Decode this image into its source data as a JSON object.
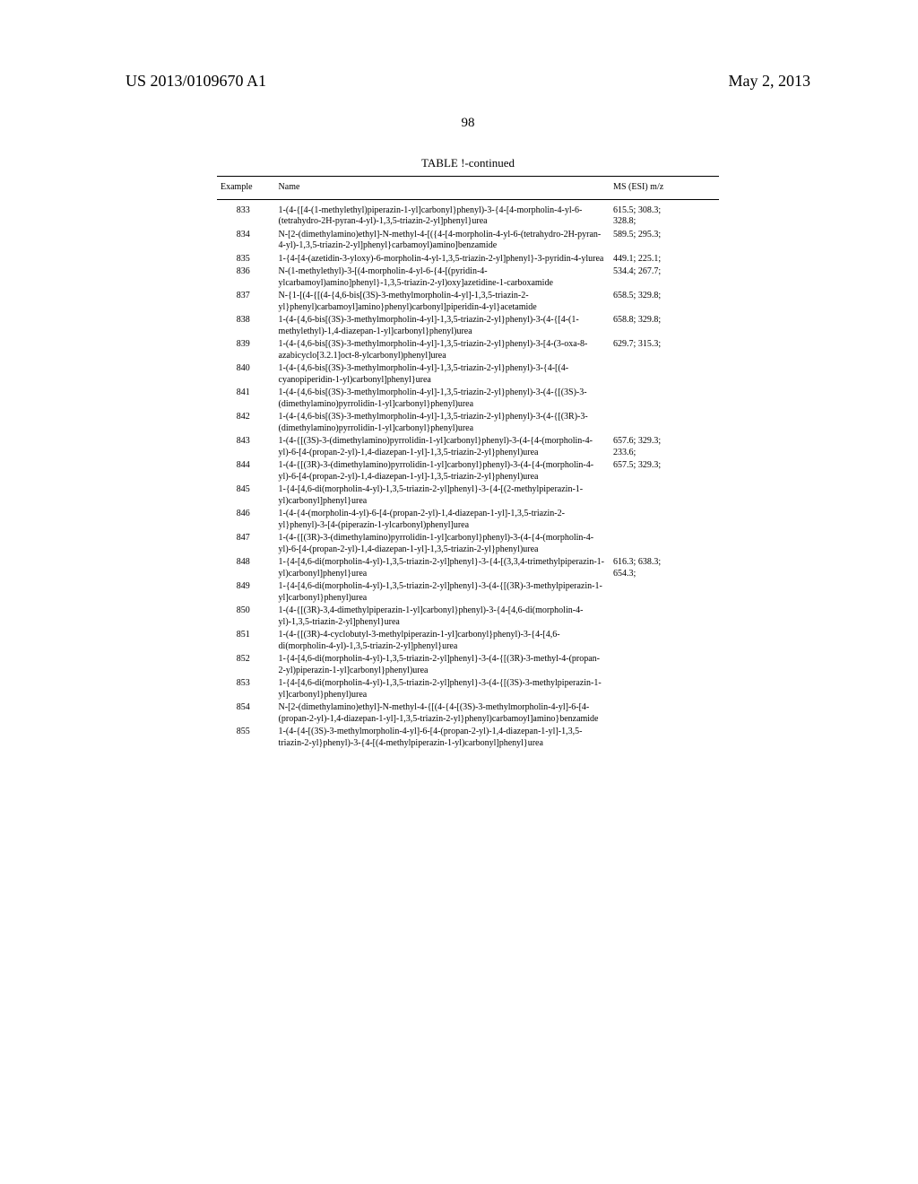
{
  "header": {
    "left": "US 2013/0109670 A1",
    "right": "May 2, 2013"
  },
  "page_number": "98",
  "table": {
    "caption": "TABLE !-continued",
    "columns": {
      "example": "Example",
      "name": "Name",
      "ms": "MS (ESI)\nm/z"
    },
    "rows": [
      {
        "ex": "833",
        "name": "1-(4-{[4-(1-methylethyl)piperazin-1-yl]carbonyl}phenyl)-3-{4-[4-morpholin-4-yl-6-(tetrahydro-2H-pyran-4-yl)-1,3,5-triazin-2-yl]phenyl}urea",
        "ms": "615.5; 308.3;\n328.8;"
      },
      {
        "ex": "834",
        "name": "N-[2-(dimethylamino)ethyl]-N-methyl-4-[({4-[4-morpholin-4-yl-6-(tetrahydro-2H-pyran-4-yl)-1,3,5-triazin-2-yl]phenyl}carbamoyl)amino]benzamide",
        "ms": "589.5; 295.3;"
      },
      {
        "ex": "835",
        "name": "1-{4-[4-(azetidin-3-yloxy)-6-morpholin-4-yl-1,3,5-triazin-2-yl]phenyl}-3-pyridin-4-ylurea",
        "ms": "449.1; 225.1;"
      },
      {
        "ex": "836",
        "name": "N-(1-methylethyl)-3-[(4-morpholin-4-yl-6-{4-[(pyridin-4-ylcarbamoyl)amino]phenyl}-1,3,5-triazin-2-yl)oxy]azetidine-1-carboxamide",
        "ms": "534.4; 267.7;"
      },
      {
        "ex": "837",
        "name": "N-{1-[(4-{[(4-{4,6-bis[(3S)-3-methylmorpholin-4-yl]-1,3,5-triazin-2-yl}phenyl)carbamoyl]amino}phenyl)carbonyl]piperidin-4-yl}acetamide",
        "ms": "658.5; 329.8;"
      },
      {
        "ex": "838",
        "name": "1-(4-{4,6-bis[(3S)-3-methylmorpholin-4-yl]-1,3,5-triazin-2-yl}phenyl)-3-(4-{[4-(1-methylethyl)-1,4-diazepan-1-yl]carbonyl}phenyl)urea",
        "ms": "658.8; 329.8;"
      },
      {
        "ex": "839",
        "name": "1-(4-{4,6-bis[(3S)-3-methylmorpholin-4-yl]-1,3,5-triazin-2-yl}phenyl)-3-[4-(3-oxa-8-azabicyclo[3.2.1]oct-8-ylcarbonyl)phenyl]urea",
        "ms": "629.7; 315.3;"
      },
      {
        "ex": "840",
        "name": "1-(4-{4,6-bis[(3S)-3-methylmorpholin-4-yl]-1,3,5-triazin-2-yl}phenyl)-3-{4-[(4-cyanopiperidin-1-yl)carbonyl]phenyl}urea",
        "ms": ""
      },
      {
        "ex": "841",
        "name": "1-(4-{4,6-bis[(3S)-3-methylmorpholin-4-yl]-1,3,5-triazin-2-yl}phenyl)-3-(4-{[(3S)-3-(dimethylamino)pyrrolidin-1-yl]carbonyl}phenyl)urea",
        "ms": ""
      },
      {
        "ex": "842",
        "name": "1-(4-{4,6-bis[(3S)-3-methylmorpholin-4-yl]-1,3,5-triazin-2-yl}phenyl)-3-(4-{[(3R)-3-(dimethylamino)pyrrolidin-1-yl]carbonyl}phenyl)urea",
        "ms": ""
      },
      {
        "ex": "843",
        "name": "1-(4-{[(3S)-3-(dimethylamino)pyrrolidin-1-yl]carbonyl}phenyl)-3-(4-{4-(morpholin-4-yl)-6-[4-(propan-2-yl)-1,4-diazepan-1-yl]-1,3,5-triazin-2-yl}phenyl)urea",
        "ms": "657.6; 329.3;\n233.6;"
      },
      {
        "ex": "844",
        "name": "1-(4-{[(3R)-3-(dimethylamino)pyrrolidin-1-yl]carbonyl}phenyl)-3-(4-{4-(morpholin-4-yl)-6-[4-(propan-2-yl)-1,4-diazepan-1-yl]-1,3,5-triazin-2-yl}phenyl)urea",
        "ms": "657.5; 329.3;"
      },
      {
        "ex": "845",
        "name": "1-{4-[4,6-di(morpholin-4-yl)-1,3,5-triazin-2-yl]phenyl}-3-{4-[(2-methylpiperazin-1-yl)carbonyl]phenyl}urea",
        "ms": ""
      },
      {
        "ex": "846",
        "name": "1-(4-{4-(morpholin-4-yl)-6-[4-(propan-2-yl)-1,4-diazepan-1-yl]-1,3,5-triazin-2-yl}phenyl)-3-[4-(piperazin-1-ylcarbonyl)phenyl]urea",
        "ms": ""
      },
      {
        "ex": "847",
        "name": "1-(4-{[(3R)-3-(dimethylamino)pyrrolidin-1-yl]carbonyl}phenyl)-3-(4-{4-(morpholin-4-yl)-6-[4-(propan-2-yl)-1,4-diazepan-1-yl]-1,3,5-triazin-2-yl}phenyl)urea",
        "ms": ""
      },
      {
        "ex": "848",
        "name": "1-{4-[4,6-di(morpholin-4-yl)-1,3,5-triazin-2-yl]phenyl}-3-{4-[(3,3,4-trimethylpiperazin-1-yl)carbonyl]phenyl}urea",
        "ms": "616.3; 638.3;\n654.3;"
      },
      {
        "ex": "849",
        "name": "1-{4-[4,6-di(morpholin-4-yl)-1,3,5-triazin-2-yl]phenyl}-3-(4-{[(3R)-3-methylpiperazin-1-yl]carbonyl}phenyl)urea",
        "ms": ""
      },
      {
        "ex": "850",
        "name": "1-(4-{[(3R)-3,4-dimethylpiperazin-1-yl]carbonyl}phenyl)-3-{4-[4,6-di(morpholin-4-yl)-1,3,5-triazin-2-yl]phenyl}urea",
        "ms": ""
      },
      {
        "ex": "851",
        "name": "1-(4-{[(3R)-4-cyclobutyl-3-methylpiperazin-1-yl]carbonyl}phenyl)-3-{4-[4,6-di(morpholin-4-yl)-1,3,5-triazin-2-yl]phenyl}urea",
        "ms": ""
      },
      {
        "ex": "852",
        "name": "1-{4-[4,6-di(morpholin-4-yl)-1,3,5-triazin-2-yl]phenyl}-3-(4-{[(3R)-3-methyl-4-(propan-2-yl)piperazin-1-yl]carbonyl}phenyl)urea",
        "ms": ""
      },
      {
        "ex": "853",
        "name": "1-{4-[4,6-di(morpholin-4-yl)-1,3,5-triazin-2-yl]phenyl}-3-(4-{[(3S)-3-methylpiperazin-1-yl]carbonyl}phenyl)urea",
        "ms": ""
      },
      {
        "ex": "854",
        "name": "N-[2-(dimethylamino)ethyl]-N-methyl-4-{[(4-{4-[(3S)-3-methylmorpholin-4-yl]-6-[4-(propan-2-yl)-1,4-diazepan-1-yl]-1,3,5-triazin-2-yl}phenyl)carbamoyl]amino}benzamide",
        "ms": ""
      },
      {
        "ex": "855",
        "name": "1-(4-{4-[(3S)-3-methylmorpholin-4-yl]-6-[4-(propan-2-yl)-1,4-diazepan-1-yl]-1,3,5-triazin-2-yl}phenyl)-3-{4-[(4-methylpiperazin-1-yl)carbonyl]phenyl}urea",
        "ms": ""
      }
    ]
  }
}
